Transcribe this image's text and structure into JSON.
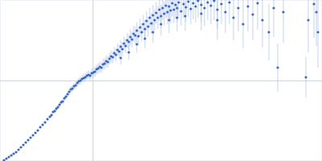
{
  "chart_data": {
    "type": "scatter",
    "color": "#3a68c0",
    "grid": true,
    "tick_labels": false,
    "marker": "circle",
    "xlim": [
      0,
      400
    ],
    "ylim": [
      0,
      200
    ],
    "xticks": [
      115
    ],
    "yticks": [
      100
    ],
    "x": [
      5,
      8,
      11,
      14,
      17,
      20,
      23,
      26,
      29,
      32,
      35,
      38,
      41,
      44,
      47,
      50,
      53,
      56,
      59,
      62,
      64,
      66,
      68,
      70,
      72,
      74,
      76,
      78,
      80,
      82,
      84,
      86,
      88,
      90,
      92,
      94,
      96,
      98,
      100,
      102,
      104,
      106,
      108,
      110,
      112,
      114,
      116,
      118,
      120,
      122,
      124,
      126,
      128,
      130,
      132,
      134,
      136,
      138,
      140,
      142,
      144,
      146,
      148,
      150,
      150,
      152,
      154,
      156,
      158,
      160,
      160,
      162,
      164,
      166,
      168,
      170,
      170,
      172,
      174,
      176,
      178,
      180,
      180,
      182,
      184,
      186,
      188,
      190,
      190,
      192,
      194,
      196,
      198,
      200,
      200,
      202,
      204,
      206,
      208,
      210,
      210,
      212,
      214,
      216,
      218,
      220,
      220,
      222,
      225,
      228,
      230,
      231,
      234,
      237,
      240,
      243,
      246,
      250,
      250,
      254,
      258,
      262,
      266,
      270,
      270,
      275,
      280,
      285,
      290,
      296,
      302,
      308,
      314,
      320,
      326,
      334,
      340,
      345,
      352,
      380,
      383,
      390,
      393,
      395
    ],
    "values": [
      1,
      3,
      5,
      7,
      9,
      11,
      14,
      17,
      20,
      23,
      26,
      29,
      32,
      35,
      38,
      42,
      45,
      48,
      52,
      55,
      57,
      61,
      62,
      65,
      67,
      70,
      73,
      74,
      78,
      80,
      83,
      86,
      89,
      90,
      93,
      94,
      97,
      99,
      100,
      102,
      103,
      104,
      106,
      107,
      106,
      109,
      110,
      111,
      114,
      115,
      117,
      116,
      120,
      121,
      124,
      123,
      127,
      130,
      129,
      134,
      132,
      138,
      136,
      142,
      128,
      139,
      146,
      143,
      150,
      148,
      135,
      154,
      151,
      158,
      156,
      162,
      145,
      155,
      166,
      160,
      170,
      164,
      152,
      174,
      167,
      178,
      171,
      181,
      160,
      175,
      184,
      178,
      188,
      180,
      170,
      190,
      183,
      193,
      185,
      192,
      175,
      187,
      196,
      188,
      194,
      190,
      178,
      197,
      186,
      195,
      180,
      191,
      198,
      189,
      196,
      192,
      199,
      194,
      183,
      190,
      197,
      193,
      199,
      188,
      175,
      195,
      185,
      197,
      178,
      190,
      170,
      192,
      182,
      196,
      175,
      160,
      190,
      116,
      185,
      104,
      175,
      195,
      185,
      160
    ],
    "errors": [
      0.5,
      0.5,
      0.5,
      0.6,
      0.6,
      0.7,
      0.7,
      0.8,
      0.8,
      0.9,
      1,
      1,
      1.2,
      1.2,
      1.4,
      1.5,
      1.6,
      1.8,
      2,
      2,
      2.2,
      2.4,
      2.5,
      2.6,
      2.8,
      3,
      3,
      3.2,
      3.4,
      3.5,
      3.6,
      3.8,
      4,
      4,
      4.2,
      4.4,
      4.5,
      4.6,
      4.8,
      5,
      5,
      5.2,
      5.4,
      5.5,
      5.6,
      5.8,
      6,
      6,
      6.2,
      6.4,
      6.5,
      6.6,
      6.8,
      7,
      7,
      7.2,
      7.4,
      7.5,
      7.6,
      7.8,
      8,
      8,
      8.2,
      8.5,
      8.5,
      8.8,
      9,
      9,
      9.2,
      9.5,
      9.5,
      9.8,
      10,
      10,
      10.5,
      10.5,
      10.5,
      11,
      11,
      11.5,
      11.5,
      12,
      12,
      12,
      12.5,
      12.5,
      13,
      13,
      13,
      13.5,
      13.5,
      14,
      14,
      14.5,
      14.5,
      15,
      15,
      15.5,
      15.5,
      16,
      16,
      16,
      16.5,
      16.5,
      17,
      17,
      17,
      17.5,
      18,
      18,
      18.5,
      18.5,
      19,
      19,
      20,
      20,
      21,
      21,
      21,
      22,
      22,
      23,
      24,
      24,
      24,
      25,
      26,
      27,
      28,
      29,
      30,
      31,
      32,
      33,
      34,
      35,
      36,
      30,
      38,
      25,
      40,
      42,
      42,
      44
    ]
  }
}
